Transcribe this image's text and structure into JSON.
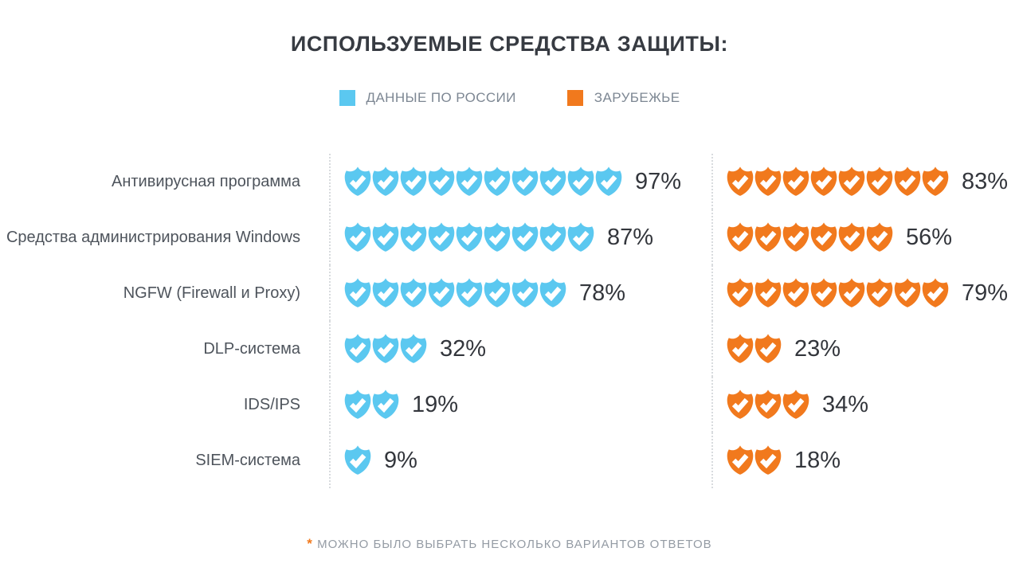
{
  "title": "ИСПОЛЬЗУЕМЫЕ СРЕДСТВА ЗАЩИТЫ:",
  "legend": [
    {
      "label": "ДАННЫЕ ПО РОССИИ",
      "color": "#5bc8f0"
    },
    {
      "label": "ЗАРУБЕЖЬЕ",
      "color": "#f1791d"
    }
  ],
  "footnote": {
    "asterisk": "*",
    "asterisk_color": "#f1791d",
    "text": "МОЖНО БЫЛО ВЫБРАТЬ НЕСКОЛЬКО ВАРИАНТОВ ОТВЕТОВ"
  },
  "icon_name": "shield-check-icon",
  "chart_data": {
    "type": "pictogram-bar",
    "title": "ИСПОЛЬЗУЕМЫЕ СРЕДСТВА ЗАЩИТЫ:",
    "unit": "%",
    "icon": "shield-check",
    "icon_unit_value": 10,
    "legend_position": "top-center",
    "grid": false,
    "categories": [
      "Антивирусная программа",
      "Средства администрирования Windows",
      "NGFW (Firewall и Proxy)",
      "DLP-система",
      "IDS/IPS",
      "SIEM-система"
    ],
    "series": [
      {
        "name": "ДАННЫЕ ПО РОССИИ",
        "color": "#5bc8f0",
        "values": [
          97,
          87,
          78,
          32,
          19,
          9
        ],
        "icon_counts": [
          10,
          9,
          8,
          3,
          2,
          1
        ]
      },
      {
        "name": "ЗАРУБЕЖЬЕ",
        "color": "#f1791d",
        "values": [
          83,
          56,
          79,
          23,
          34,
          18
        ],
        "icon_counts": [
          8,
          6,
          8,
          2,
          3,
          2
        ]
      }
    ]
  }
}
